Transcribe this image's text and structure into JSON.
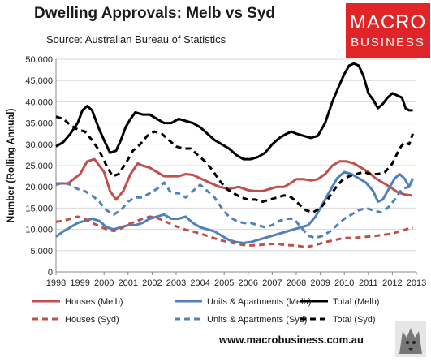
{
  "header": {
    "title": "Dwelling Approvals: Melb vs Syd",
    "subtitle": "Source: Australian Bureau of Statistics"
  },
  "logo": {
    "line1": "MACRO",
    "line2": "BUSINESS",
    "color": "#e02528"
  },
  "footer": {
    "url": "www.macrobusiness.com.au"
  },
  "chart_data": {
    "type": "line",
    "ylabel": "Number (Rolling Annual)",
    "xlabel": "",
    "xlim": [
      1998,
      2013
    ],
    "ylim": [
      0,
      50000
    ],
    "grid": true,
    "legend": "bottom",
    "xticks": [
      "1998",
      "1999",
      "2000",
      "2001",
      "2002",
      "2003",
      "2004",
      "2005",
      "2006",
      "2007",
      "2008",
      "2009",
      "2010",
      "2011",
      "2012",
      "2013"
    ],
    "yticks": [
      "0",
      "5,000",
      "10,000",
      "15,000",
      "20,000",
      "25,000",
      "30,000",
      "35,000",
      "40,000",
      "45,000",
      "50,000"
    ],
    "series": [
      {
        "name": "Houses (Melb)",
        "color": "#c0504d",
        "dash": "solid",
        "x": [
          1998.0,
          1998.5,
          1999.0,
          1999.3,
          1999.6,
          2000.0,
          2000.25,
          2000.5,
          2000.8,
          2001.1,
          2001.4,
          2001.6,
          2001.9,
          2002.2,
          2002.5,
          2002.8,
          2003.1,
          2003.4,
          2003.7,
          2004.0,
          2004.4,
          2004.8,
          2005.2,
          2005.6,
          2006.0,
          2006.3,
          2006.6,
          2006.9,
          2007.2,
          2007.5,
          2007.8,
          2008.0,
          2008.3,
          2008.6,
          2008.9,
          2009.2,
          2009.5,
          2009.8,
          2010.1,
          2010.4,
          2010.7,
          2011.0,
          2011.3,
          2011.6,
          2011.9,
          2012.2,
          2012.5,
          2012.8
        ],
        "y": [
          20800,
          20800,
          23000,
          26000,
          26500,
          23500,
          19000,
          17000,
          19000,
          23000,
          25500,
          25000,
          24500,
          23500,
          22500,
          22500,
          22500,
          23000,
          22800,
          22000,
          21000,
          20000,
          19500,
          20000,
          19200,
          19000,
          19000,
          19500,
          20000,
          20000,
          21000,
          21800,
          21800,
          21500,
          21800,
          23000,
          25000,
          26000,
          26000,
          25500,
          24500,
          23500,
          22000,
          21000,
          20000,
          18800,
          18200,
          18000
        ]
      },
      {
        "name": "Units & Apartments (Melb)",
        "color": "#4f81bd",
        "dash": "solid",
        "x": [
          1998.0,
          1998.3,
          1998.6,
          1998.9,
          1999.2,
          1999.5,
          1999.8,
          2000.1,
          2000.4,
          2000.7,
          2001.0,
          2001.3,
          2001.6,
          2001.9,
          2002.2,
          2002.5,
          2002.8,
          2003.1,
          2003.4,
          2003.7,
          2004.0,
          2004.3,
          2004.6,
          2004.9,
          2005.2,
          2005.5,
          2005.8,
          2006.1,
          2006.4,
          2006.7,
          2007.0,
          2007.3,
          2007.6,
          2007.9,
          2008.2,
          2008.5,
          2008.8,
          2009.1,
          2009.4,
          2009.7,
          2010.0,
          2010.3,
          2010.6,
          2010.9,
          2011.2,
          2011.4,
          2011.6,
          2011.9,
          2012.1,
          2012.3,
          2012.5,
          2012.7,
          2012.85
        ],
        "y": [
          8300,
          9500,
          10500,
          11500,
          12000,
          12500,
          12000,
          10500,
          10000,
          10500,
          11000,
          11000,
          11500,
          12500,
          13000,
          13500,
          12500,
          12500,
          13000,
          11500,
          10500,
          10000,
          9500,
          8500,
          7500,
          7000,
          6800,
          7000,
          7500,
          8000,
          8500,
          9000,
          9500,
          10000,
          10500,
          11000,
          13000,
          16000,
          19000,
          22000,
          23500,
          23000,
          22000,
          21000,
          19000,
          16500,
          17000,
          20000,
          22000,
          23000,
          22000,
          20000,
          22000
        ]
      },
      {
        "name": "Total (Melb)",
        "color": "#000000",
        "dash": "solid",
        "x": [
          1998.0,
          1998.3,
          1998.6,
          1998.9,
          1999.1,
          1999.3,
          1999.5,
          1999.8,
          2000.0,
          2000.25,
          2000.5,
          2000.7,
          2000.9,
          2001.1,
          2001.3,
          2001.6,
          2001.9,
          2002.2,
          2002.5,
          2002.8,
          2003.1,
          2003.4,
          2003.7,
          2004.0,
          2004.3,
          2004.6,
          2004.9,
          2005.2,
          2005.5,
          2005.8,
          2006.1,
          2006.4,
          2006.7,
          2007.0,
          2007.3,
          2007.6,
          2007.8,
          2008.0,
          2008.3,
          2008.6,
          2008.9,
          2009.2,
          2009.5,
          2009.8,
          2010.0,
          2010.2,
          2010.4,
          2010.6,
          2010.8,
          2011.0,
          2011.2,
          2011.4,
          2011.6,
          2011.8,
          2012.0,
          2012.2,
          2012.4,
          2012.55,
          2012.7,
          2012.85
        ],
        "y": [
          29500,
          30500,
          32500,
          35000,
          38000,
          39000,
          38000,
          33500,
          31000,
          28000,
          28500,
          31000,
          34000,
          36000,
          37500,
          37000,
          37000,
          36000,
          35000,
          35000,
          36000,
          35500,
          35000,
          34000,
          32500,
          31000,
          30000,
          29000,
          27500,
          26500,
          26500,
          27000,
          28000,
          30000,
          31500,
          32500,
          33000,
          32500,
          32000,
          31500,
          32000,
          35000,
          40000,
          44000,
          46500,
          48500,
          49000,
          48500,
          46000,
          42000,
          40500,
          38500,
          39500,
          41000,
          42000,
          41500,
          41000,
          38500,
          38000,
          38000
        ]
      },
      {
        "name": "Houses (Syd)",
        "color": "#c0504d",
        "dash": "dash",
        "x": [
          1998.0,
          1998.3,
          1998.6,
          1998.9,
          1999.2,
          1999.5,
          1999.8,
          2000.1,
          2000.4,
          2000.7,
          2001.0,
          2001.3,
          2001.6,
          2001.9,
          2002.2,
          2002.5,
          2002.8,
          2003.1,
          2003.4,
          2003.7,
          2004.0,
          2004.4,
          2004.8,
          2005.2,
          2005.6,
          2006.0,
          2006.4,
          2006.8,
          2007.2,
          2007.6,
          2008.0,
          2008.4,
          2008.8,
          2009.2,
          2009.6,
          2010.0,
          2010.4,
          2010.8,
          2011.2,
          2011.6,
          2012.0,
          2012.4,
          2012.85
        ],
        "y": [
          11800,
          12000,
          12500,
          13000,
          12500,
          11500,
          10800,
          10000,
          9600,
          10200,
          11200,
          11800,
          12500,
          13000,
          12700,
          12000,
          11200,
          10500,
          9900,
          9500,
          9000,
          8300,
          7500,
          7000,
          6500,
          6200,
          6300,
          6500,
          6600,
          6300,
          6200,
          5800,
          6300,
          7000,
          7500,
          8000,
          8000,
          8200,
          8400,
          8700,
          9000,
          9700,
          10500
        ]
      },
      {
        "name": "Units & Apartments (Syd)",
        "color": "#4f81bd",
        "dash": "dash",
        "x": [
          1998.0,
          1998.3,
          1998.6,
          1998.9,
          1999.2,
          1999.5,
          1999.8,
          2000.1,
          2000.4,
          2000.7,
          2001.0,
          2001.3,
          2001.6,
          2001.9,
          2002.2,
          2002.5,
          2002.8,
          2003.1,
          2003.4,
          2003.7,
          2004.0,
          2004.3,
          2004.6,
          2004.9,
          2005.2,
          2005.5,
          2005.8,
          2006.1,
          2006.4,
          2006.7,
          2007.0,
          2007.3,
          2007.6,
          2007.9,
          2008.2,
          2008.5,
          2008.8,
          2009.1,
          2009.4,
          2009.7,
          2010.0,
          2010.3,
          2010.6,
          2010.9,
          2011.2,
          2011.5,
          2011.8,
          2012.1,
          2012.4,
          2012.7,
          2012.85
        ],
        "y": [
          20500,
          21000,
          20500,
          19500,
          19000,
          18000,
          16500,
          14500,
          13500,
          14500,
          16500,
          17500,
          17500,
          18500,
          19500,
          21000,
          18500,
          18500,
          17500,
          19000,
          20500,
          19000,
          17500,
          15000,
          13000,
          12000,
          11500,
          11500,
          11000,
          10500,
          11000,
          12000,
          12500,
          12500,
          10500,
          8500,
          8000,
          8500,
          9500,
          11000,
          12500,
          13500,
          14500,
          15000,
          14500,
          14000,
          15000,
          17000,
          19500,
          20000,
          22000
        ]
      },
      {
        "name": "Total (Syd)",
        "color": "#000000",
        "dash": "dash",
        "x": [
          1998.0,
          1998.3,
          1998.6,
          1998.9,
          1999.2,
          1999.5,
          1999.8,
          2000.1,
          2000.35,
          2000.6,
          2000.9,
          2001.2,
          2001.5,
          2001.8,
          2002.1,
          2002.4,
          2002.7,
          2003.0,
          2003.3,
          2003.6,
          2003.9,
          2004.2,
          2004.5,
          2004.8,
          2005.1,
          2005.4,
          2005.7,
          2006.0,
          2006.3,
          2006.6,
          2006.9,
          2007.2,
          2007.5,
          2007.8,
          2008.1,
          2008.4,
          2008.7,
          2009.0,
          2009.3,
          2009.6,
          2009.9,
          2010.2,
          2010.5,
          2010.8,
          2011.1,
          2011.4,
          2011.7,
          2012.0,
          2012.3,
          2012.5,
          2012.7,
          2012.85
        ],
        "y": [
          36500,
          36000,
          34500,
          33500,
          33000,
          31000,
          28500,
          25000,
          22500,
          23000,
          25500,
          28500,
          30000,
          32000,
          33000,
          32500,
          31000,
          29500,
          29000,
          29000,
          27500,
          26000,
          24000,
          21500,
          19500,
          18500,
          17500,
          17000,
          17000,
          16500,
          17000,
          17500,
          18000,
          17500,
          16000,
          14500,
          14000,
          15000,
          17000,
          19500,
          21500,
          22500,
          23000,
          23500,
          23000,
          23000,
          23500,
          25500,
          29000,
          30500,
          30000,
          32500
        ]
      }
    ]
  }
}
